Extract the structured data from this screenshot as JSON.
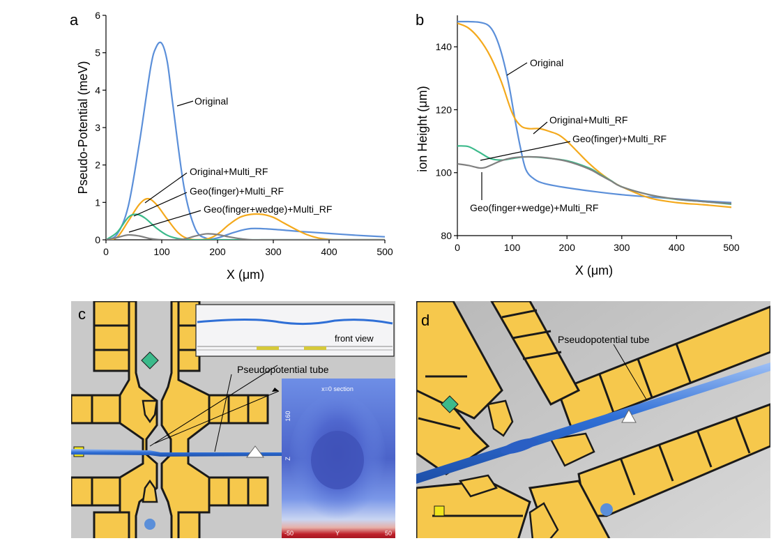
{
  "colors": {
    "original": "#5b8fd9",
    "multi_rf": "#f4a91c",
    "finger": "#3cba8b",
    "wedge": "#808080",
    "gold": "#f6c84c",
    "grey": "#c8c8c8",
    "tube": "#2f6fd6"
  },
  "chart_data": [
    {
      "panel": "a",
      "type": "line",
      "xlabel": "X (μm)",
      "ylabel": "Pseudo-Potential (meV)",
      "xlim": [
        0,
        500
      ],
      "ylim": [
        0,
        6
      ],
      "xticks": [
        "0",
        "100",
        "200",
        "300",
        "400",
        "500"
      ],
      "yticks": [
        "0",
        "1",
        "2",
        "3",
        "4",
        "5",
        "6"
      ],
      "series": [
        {
          "name": "Original",
          "color_key": "original",
          "x": [
            0,
            20,
            40,
            60,
            80,
            90,
            100,
            110,
            120,
            140,
            160,
            180,
            200,
            230,
            260,
            300,
            350,
            400,
            450,
            500
          ],
          "y": [
            0,
            0.15,
            0.9,
            2.6,
            4.6,
            5.15,
            5.25,
            4.75,
            3.6,
            1.4,
            0.3,
            0.04,
            0.05,
            0.2,
            0.3,
            0.28,
            0.22,
            0.17,
            0.12,
            0.08
          ]
        },
        {
          "name": "Original+Multi_RF",
          "color_key": "multi_rf",
          "x": [
            0,
            20,
            40,
            60,
            75,
            90,
            110,
            130,
            150,
            180,
            200,
            220,
            240,
            260,
            280,
            300,
            320,
            340,
            360,
            380,
            400,
            420,
            450,
            500
          ],
          "y": [
            0,
            0.07,
            0.5,
            0.95,
            1.1,
            0.95,
            0.55,
            0.18,
            0.02,
            0.02,
            0.15,
            0.4,
            0.6,
            0.68,
            0.68,
            0.6,
            0.44,
            0.28,
            0.14,
            0.05,
            0.01,
            0,
            0,
            0
          ]
        },
        {
          "name": "Geo(finger)+Multi_RF",
          "color_key": "finger",
          "x": [
            0,
            20,
            40,
            55,
            70,
            90,
            110,
            130,
            150,
            180,
            200,
            250,
            300,
            400,
            500
          ],
          "y": [
            0,
            0.2,
            0.6,
            0.68,
            0.58,
            0.32,
            0.12,
            0.03,
            0,
            0,
            0,
            0,
            0,
            0,
            0
          ]
        },
        {
          "name": "Geo(finger+wedge)+Multi_RF",
          "color_key": "wedge",
          "x": [
            0,
            20,
            40,
            60,
            80,
            100,
            120,
            140,
            160,
            180,
            200,
            220,
            240,
            260,
            280,
            300,
            350,
            400,
            450,
            500
          ],
          "y": [
            0,
            0.06,
            0.13,
            0.1,
            0.03,
            0,
            0,
            0.02,
            0.1,
            0.16,
            0.14,
            0.08,
            0.03,
            0,
            0,
            0,
            0,
            0,
            0,
            0
          ]
        }
      ],
      "annotations": [
        "Original",
        "Original+Multi_RF",
        "Geo(finger)+Multi_RF",
        "Geo(finger+wedge)+Multi_RF"
      ]
    },
    {
      "panel": "b",
      "type": "line",
      "xlabel": "X (μm)",
      "ylabel": "ion Height (μm)",
      "xlim": [
        0,
        500
      ],
      "ylim": [
        80,
        150
      ],
      "xticks": [
        "0",
        "100",
        "200",
        "300",
        "400",
        "500"
      ],
      "yticks": [
        "80",
        "100",
        "120",
        "140"
      ],
      "series": [
        {
          "name": "Original",
          "color_key": "original",
          "x": [
            0,
            20,
            40,
            55,
            65,
            75,
            85,
            95,
            105,
            115,
            125,
            140,
            160,
            200,
            250,
            300,
            350,
            400,
            450,
            500
          ],
          "y": [
            148,
            148,
            147.8,
            147,
            145,
            141,
            135,
            127,
            117,
            108,
            101,
            98,
            96.5,
            95.2,
            94,
            93,
            92.3,
            91.7,
            91,
            90.5
          ]
        },
        {
          "name": "Original+Multi_RF",
          "color_key": "multi_rf",
          "x": [
            0,
            20,
            40,
            60,
            80,
            100,
            115,
            130,
            150,
            170,
            185,
            200,
            220,
            240,
            260,
            280,
            300,
            350,
            400,
            450,
            500
          ],
          "y": [
            147.5,
            146,
            142.5,
            137,
            129,
            119,
            115,
            114,
            114,
            113,
            112,
            110,
            106.5,
            103,
            100,
            97.5,
            95.5,
            92,
            90.5,
            89.8,
            89
          ]
        },
        {
          "name": "Geo(finger)+Multi_RF",
          "color_key": "finger",
          "x": [
            0,
            20,
            40,
            60,
            80,
            100,
            120,
            140,
            160,
            200,
            240,
            260,
            280,
            300,
            350,
            400,
            450,
            500
          ],
          "y": [
            108.5,
            108.3,
            106.5,
            104.5,
            104,
            104.5,
            105,
            105,
            104.7,
            103.8,
            101.5,
            99.5,
            97.5,
            95.5,
            93,
            91.5,
            90.8,
            90
          ]
        },
        {
          "name": "Geo(finger+wedge)+Multi_RF",
          "color_key": "wedge",
          "x": [
            0,
            20,
            40,
            50,
            60,
            80,
            100,
            120,
            140,
            160,
            200,
            240,
            260,
            280,
            300,
            350,
            400,
            450,
            500
          ],
          "y": [
            102.8,
            102.3,
            101.5,
            101.6,
            102.3,
            103.8,
            104.7,
            105,
            105,
            104.8,
            103.6,
            101.2,
            99.3,
            97.4,
            95.5,
            93,
            91.6,
            90.8,
            90.2
          ]
        }
      ],
      "annotations": [
        "Original",
        "Original+Multi_RF",
        "Geo(finger)+Multi_RF",
        "Geo(finger+wedge)+Multi_RF"
      ]
    }
  ],
  "panels": {
    "a": "a",
    "b": "b",
    "c": "c",
    "d": "d"
  },
  "panel_c": {
    "inset_label": "front view",
    "tube_label": "Pseudopotential tube",
    "section_title": "x=0 section",
    "section_z_label": "Z",
    "section_y_label": "Y",
    "section_z_tick": "160",
    "section_y_min": "-50",
    "section_y_max": "50"
  },
  "panel_d": {
    "tube_label": "Pseudopotential tube"
  }
}
